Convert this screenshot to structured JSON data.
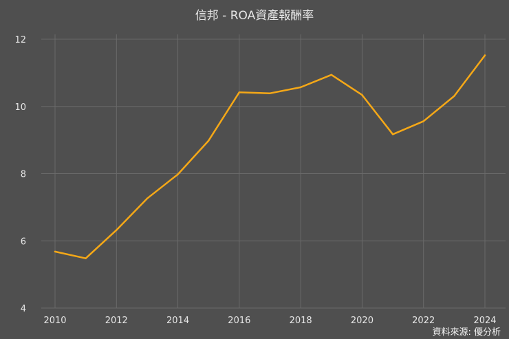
{
  "chart_data": {
    "type": "line",
    "title": "信邦 - ROA資產報酬率",
    "xlabel": "",
    "ylabel": "",
    "x": [
      2010,
      2011,
      2012,
      2013,
      2014,
      2015,
      2016,
      2017,
      2018,
      2019,
      2020,
      2021,
      2022,
      2023,
      2024
    ],
    "series": [
      {
        "values": [
          5.68,
          5.48,
          6.32,
          7.26,
          7.98,
          8.98,
          10.42,
          10.39,
          10.57,
          10.94,
          10.34,
          9.17,
          9.56,
          10.31,
          11.52
        ]
      }
    ],
    "ylim": [
      4,
      12
    ],
    "yticks": [
      4,
      6,
      8,
      10,
      12
    ],
    "xticks": [
      2010,
      2012,
      2014,
      2016,
      2018,
      2020,
      2022,
      2024
    ],
    "xlim": [
      2010,
      2024
    ],
    "grid": true,
    "line_color": "#f5a817",
    "background": "#4f4f4f",
    "grid_color": "#6a6a6a"
  },
  "source": "資料來源: 優分析"
}
